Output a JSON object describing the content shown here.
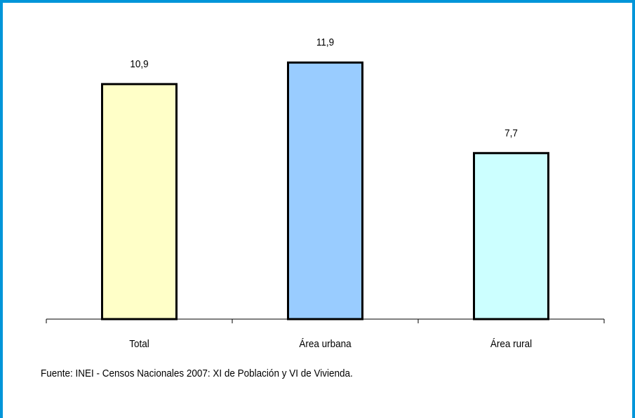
{
  "chart_data": {
    "type": "bar",
    "categories": [
      "Total",
      "Área urbana",
      "Área rural"
    ],
    "values": [
      10.9,
      11.9,
      7.7
    ],
    "value_labels": [
      "10,9",
      "11,9",
      "7,7"
    ],
    "bar_colors": [
      "#ffffc8",
      "#99ccff",
      "#ccffff"
    ],
    "bar_border_color": "#000000",
    "ylim": [
      0,
      13.5
    ],
    "grid": false,
    "legend": "none",
    "title": "",
    "xlabel": "",
    "ylabel": ""
  },
  "source": "Fuente: INEI - Censos Nacionales 2007: XI de Población y VI de Vivienda.",
  "frame_color": "#0095d9"
}
